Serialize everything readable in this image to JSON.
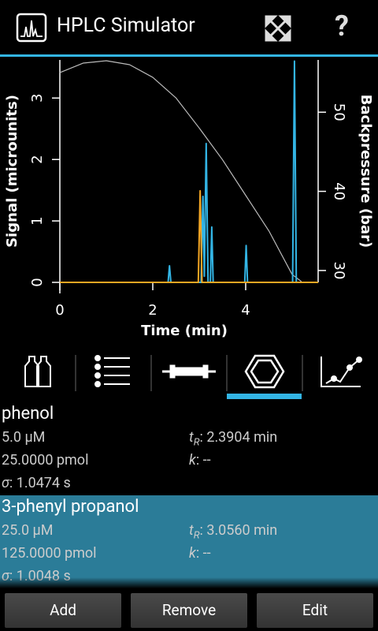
{
  "app_bar": {
    "title": "HPLC Simulator",
    "help_label": "?"
  },
  "chart_data": {
    "type": "line",
    "xlabel": "Time (min)",
    "ylabel": "Signal (microunits)",
    "y2label": "Backpressure (bar)",
    "xlim": [
      0,
      5.56
    ],
    "ylim": [
      0,
      3.62
    ],
    "y2lim": [
      28.5,
      56.6
    ],
    "xticks": [
      0,
      2,
      4
    ],
    "yticks": [
      0,
      1,
      2,
      3
    ],
    "y2ticks": [
      30,
      40,
      50
    ],
    "series": [
      {
        "color": "#33b5e5",
        "x": [
          0,
          2.33,
          2.36,
          2.39,
          3.04,
          3.08,
          3.11,
          3.15,
          3.19,
          3.24,
          3.27,
          3.3,
          3.98,
          4.01,
          4.04,
          5.01,
          5.05,
          5.09,
          5.56
        ],
        "values": [
          0,
          0,
          0.27,
          0,
          0,
          1.4,
          0.1,
          2.26,
          0,
          0,
          0.9,
          0,
          0,
          0.6,
          0,
          0,
          3.6,
          0,
          0
        ]
      },
      {
        "color": "#f5a623",
        "x": [
          0,
          2.98,
          3.02,
          3.06,
          5.56
        ],
        "values": [
          0,
          0,
          1.49,
          0,
          0
        ]
      },
      {
        "color": "#bbbbbb",
        "axis": "y2",
        "x": [
          0,
          0.5,
          1.0,
          1.5,
          2.0,
          2.5,
          3.0,
          3.5,
          4.0,
          4.5,
          5.0,
          5.2
        ],
        "values": [
          55.0,
          56.2,
          56.5,
          56.0,
          54.4,
          51.8,
          48.0,
          44.0,
          39.5,
          35.0,
          29.5,
          28.6
        ]
      }
    ]
  },
  "list": {
    "items": [
      {
        "name": "phenol",
        "concentration": "5.0 µM",
        "amount": "25.0000 pmol",
        "retention": {
          "symbol": "t",
          "subscript": "R",
          "value": ": 2.3904 min"
        },
        "retention_factor": {
          "symbol": "k",
          "value": ": --"
        },
        "peak_width": {
          "symbol": "σ",
          "value": ": 1.0474 s"
        },
        "selected": false
      },
      {
        "name": "3-phenyl propanol",
        "concentration": "25.0 µM",
        "amount": "125.0000 pmol",
        "retention": {
          "symbol": "t",
          "subscript": "R",
          "value": ": 3.0560 min"
        },
        "retention_factor": {
          "symbol": "k",
          "value": ": --"
        },
        "peak_width": {
          "symbol": "σ",
          "value": ": 1.0048 s"
        },
        "selected": true
      }
    ]
  },
  "buttons": [
    "Add",
    "Remove",
    "Edit"
  ]
}
